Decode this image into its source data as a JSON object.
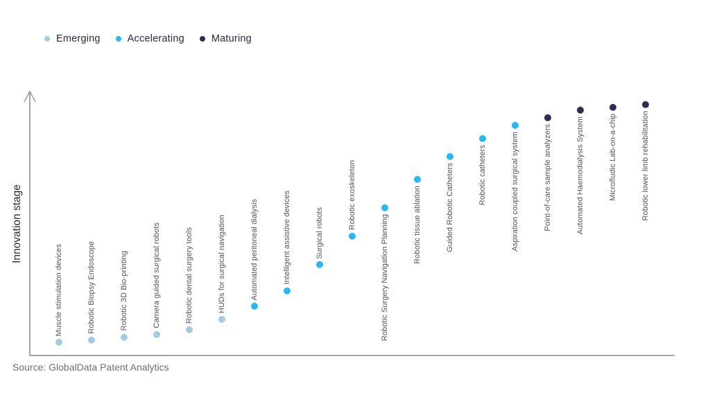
{
  "page": {
    "background": "#ffffff",
    "source_note": "Source: GlobalData Patent Analytics"
  },
  "chart_data": {
    "type": "scatter",
    "title": "",
    "xlabel": "",
    "ylabel": "Innovation stage",
    "ylim": [
      0,
      100
    ],
    "grid": false,
    "x_axis_ticks": false,
    "y_axis_ticks": false,
    "y_axis_arrow": true,
    "legend": {
      "position": "top-left",
      "items": [
        {
          "label": "Emerging",
          "color": "#a5cbe2"
        },
        {
          "label": "Accelerating",
          "color": "#29b7f3"
        },
        {
          "label": "Maturing",
          "color": "#312b53"
        }
      ]
    },
    "points": [
      {
        "label": "Muscle stimulation devices",
        "stage": "Emerging",
        "innovation_level": 5,
        "label_position": "above"
      },
      {
        "label": "Robotic Biopsy Endoscope",
        "stage": "Emerging",
        "innovation_level": 6,
        "label_position": "above"
      },
      {
        "label": "Robotic 3D Bio-printing",
        "stage": "Emerging",
        "innovation_level": 7,
        "label_position": "above"
      },
      {
        "label": "Camera guided surgical robots",
        "stage": "Emerging",
        "innovation_level": 8,
        "label_position": "above"
      },
      {
        "label": "Robotic dental surgery tools",
        "stage": "Emerging",
        "innovation_level": 10,
        "label_position": "above"
      },
      {
        "label": "HUDs for surgical navigation",
        "stage": "Emerging",
        "innovation_level": 14,
        "label_position": "above"
      },
      {
        "label": "Automated peritoneal dialysis",
        "stage": "Accelerating",
        "innovation_level": 19,
        "label_position": "above"
      },
      {
        "label": "Intelligent assistive devices",
        "stage": "Accelerating",
        "innovation_level": 25,
        "label_position": "above"
      },
      {
        "label": "Surgical robots",
        "stage": "Accelerating",
        "innovation_level": 35,
        "label_position": "above"
      },
      {
        "label": "Robotic exoskeleton",
        "stage": "Accelerating",
        "innovation_level": 46,
        "label_position": "above"
      },
      {
        "label": "Robotic Surgery Navigation Planning",
        "stage": "Accelerating",
        "innovation_level": 57,
        "label_position": "below"
      },
      {
        "label": "Robotic tissue ablation",
        "stage": "Accelerating",
        "innovation_level": 68,
        "label_position": "below"
      },
      {
        "label": "Guided Robotic Catheters",
        "stage": "Accelerating",
        "innovation_level": 77,
        "label_position": "below"
      },
      {
        "label": "Robotic catheters",
        "stage": "Accelerating",
        "innovation_level": 84,
        "label_position": "below"
      },
      {
        "label": "Aspiration coupled surgical system",
        "stage": "Accelerating",
        "innovation_level": 89,
        "label_position": "below"
      },
      {
        "label": "Point-of-care sample analyzers",
        "stage": "Maturing",
        "innovation_level": 92,
        "label_position": "below"
      },
      {
        "label": "Automated Haemodialysis System",
        "stage": "Maturing",
        "innovation_level": 95,
        "label_position": "below"
      },
      {
        "label": "Microfludic Lab-on-a-chip",
        "stage": "Maturing",
        "innovation_level": 96,
        "label_position": "below"
      },
      {
        "label": "Robotic lower limb rehabilitation",
        "stage": "Maturing",
        "innovation_level": 97,
        "label_position": "below"
      }
    ]
  }
}
